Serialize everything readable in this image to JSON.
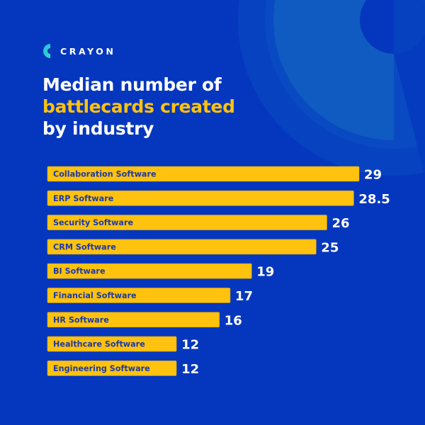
{
  "brand": {
    "name": "CRAYON",
    "logo_icon": "crayon-c-logo-icon"
  },
  "title": {
    "line1": "Median number of",
    "line2_highlight": "battlecards created",
    "line3": "by industry"
  },
  "colors": {
    "background": "#0537be",
    "bar": "#fec20f",
    "bar_label": "#1b3aa6",
    "value_label": "#ffffff",
    "highlight_text": "#fec20f",
    "decor_light": "#105bc1",
    "decor_mid": "#0a4cc3",
    "decor_dark": "#0744c0"
  },
  "chart_data": {
    "type": "bar",
    "orientation": "horizontal",
    "title": "Median number of battlecards created by industry",
    "xlabel": "",
    "ylabel": "",
    "grid": false,
    "legend": "none",
    "xlim": [
      0,
      29
    ],
    "categories": [
      "Collaboration Software",
      "ERP Software",
      "Security Software",
      "CRM Software",
      "BI Software",
      "Financial Software",
      "HR Software",
      "Healthcare Software",
      "Engineering Software"
    ],
    "values": [
      29,
      28.5,
      26,
      25,
      19,
      17,
      16,
      12,
      12
    ],
    "value_labels": [
      "29",
      "28.5",
      "26",
      "25",
      "19",
      "17",
      "16",
      "12",
      "12"
    ]
  }
}
